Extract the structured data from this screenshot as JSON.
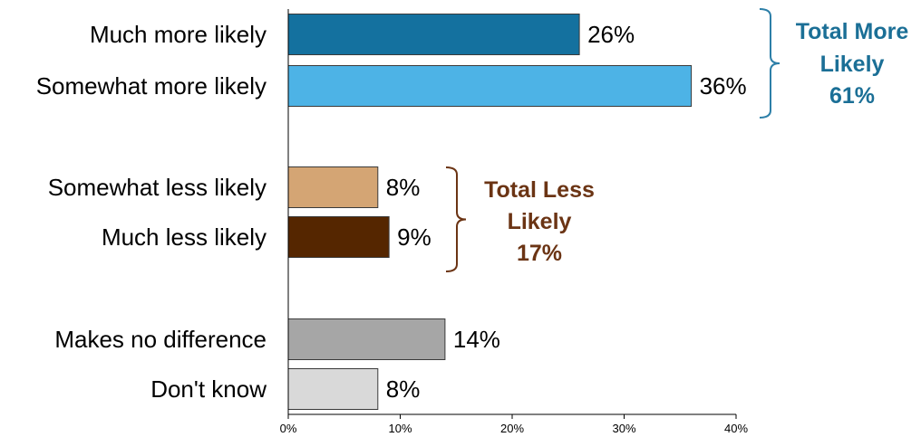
{
  "chart_data": {
    "type": "bar",
    "orientation": "horizontal",
    "categories": [
      "Much more likely",
      "Somewhat more likely",
      "Somewhat less likely",
      "Much less likely",
      "Makes no difference",
      "Don't know"
    ],
    "values": [
      26,
      36,
      8,
      9,
      14,
      8
    ],
    "value_labels": [
      "26%",
      "36%",
      "8%",
      "9%",
      "14%",
      "8%"
    ],
    "bar_colors": [
      "#14719f",
      "#4db3e6",
      "#d4a574",
      "#552600",
      "#a6a6a6",
      "#d9d9d9"
    ],
    "xlim": [
      0,
      40
    ],
    "xticks": [
      0,
      10,
      20,
      30,
      40
    ],
    "xtick_labels": [
      "0%",
      "10%",
      "20%",
      "30%",
      "40%"
    ],
    "grid": false,
    "groups": [
      {
        "lines": [
          "Total More",
          "Likely",
          "61%"
        ],
        "categories": [
          0,
          1
        ],
        "color": "#1b6f96",
        "bracket_color": "#2d7fa8"
      },
      {
        "lines": [
          "Total Less",
          "Likely",
          "17%"
        ],
        "categories": [
          2,
          3
        ],
        "color": "#6b3414",
        "bracket_color": "#6b3414"
      }
    ]
  }
}
